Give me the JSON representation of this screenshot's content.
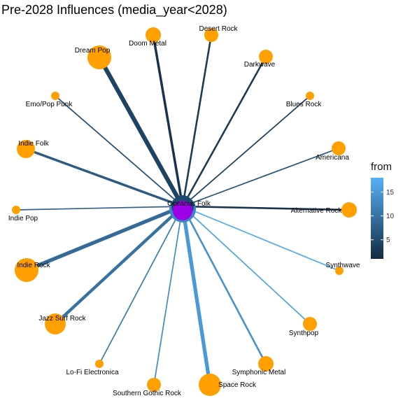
{
  "title": "Pre-2028 Influences (media_year<2028)",
  "center_node": {
    "name": "Oceanus Folk",
    "color": "#9b00e6"
  },
  "leaf_color": "#ffa000",
  "legend": {
    "title": "from",
    "ticks": [
      5,
      10,
      15
    ],
    "min": 1,
    "max": 18,
    "low_color": "#132b43",
    "high_color": "#56b1f7"
  },
  "edges": [
    {
      "target": "Dream Pop",
      "from": 4,
      "weight": 6
    },
    {
      "target": "Doom Metal",
      "from": 2,
      "weight": 3
    },
    {
      "target": "Desert Rock",
      "from": 3,
      "weight": 2
    },
    {
      "target": "Darkwave",
      "from": 3,
      "weight": 2
    },
    {
      "target": "Blues Rock",
      "from": 3,
      "weight": 1
    },
    {
      "target": "Americana",
      "from": 6,
      "weight": 1
    },
    {
      "target": "Alternative Rock",
      "from": 2,
      "weight": 2
    },
    {
      "target": "Synthwave",
      "from": 17,
      "weight": 1
    },
    {
      "target": "Synthpop",
      "from": 16,
      "weight": 1
    },
    {
      "target": "Symphonic Metal",
      "from": 14,
      "weight": 2
    },
    {
      "target": "Space Rock",
      "from": 15,
      "weight": 5
    },
    {
      "target": "Southern Gothic Rock",
      "from": 13,
      "weight": 1
    },
    {
      "target": "Lo-Fi Electronica",
      "from": 11,
      "weight": 1
    },
    {
      "target": "Jazz Surf Rock",
      "from": 10,
      "weight": 4
    },
    {
      "target": "Indie Rock",
      "from": 9,
      "weight": 5
    },
    {
      "target": "Indie Pop",
      "from": 8,
      "weight": 1
    },
    {
      "target": "Indie Folk",
      "from": 7,
      "weight": 3
    },
    {
      "target": "Emo/Pop Punk",
      "from": 5,
      "weight": 1
    }
  ]
}
